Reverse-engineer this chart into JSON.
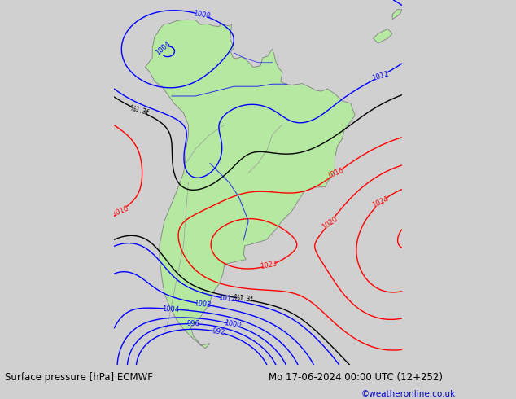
{
  "title_left": "Surface pressure [hPa] ECMWF",
  "title_right": "Mo 17-06-2024 00:00 UTC (12+252)",
  "copyright": "©weatheronline.co.uk",
  "bg_color": "#d0d0d0",
  "land_color": "#b5e8a0",
  "fig_width": 6.34,
  "fig_height": 4.9,
  "dpi": 100,
  "bottom_text_color": "#000000",
  "copyright_color": "#0000cc",
  "lon_min": -85,
  "lon_max": -25,
  "lat_min": -60,
  "lat_max": 16
}
